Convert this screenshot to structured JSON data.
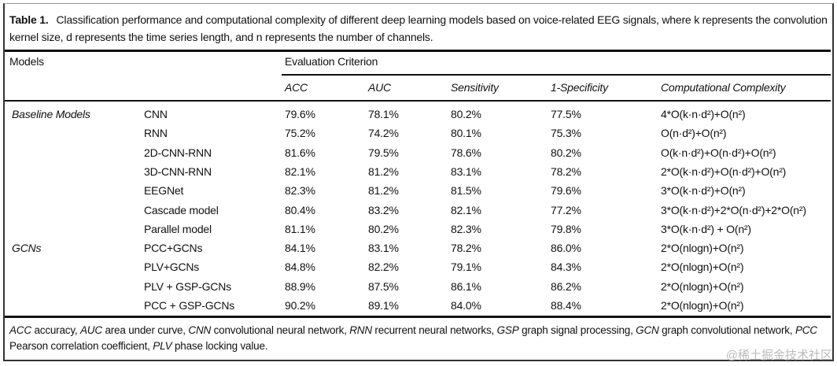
{
  "caption": {
    "label": "Table 1.",
    "text": "Classification performance and computational complexity of different deep learning models based on voice-related EEG signals, where k represents the convolution kernel size, d represents the time series length, and n represents the number of channels."
  },
  "header": {
    "models": "Models",
    "evaluation": "Evaluation Criterion",
    "columns": [
      "ACC",
      "AUC",
      "Sensitivity",
      "1-Specificity",
      "Computational Complexity"
    ]
  },
  "groups": [
    "Baseline Models",
    "GCNs"
  ],
  "rows": [
    {
      "model": "CNN",
      "acc": "79.6%",
      "auc": "78.1%",
      "sens": "80.2%",
      "spec": "77.5%",
      "cc": "4*O(k·n·d²)+O(n²)"
    },
    {
      "model": "RNN",
      "acc": "75.2%",
      "auc": "74.2%",
      "sens": "80.1%",
      "spec": "75.3%",
      "cc": "O(n·d²)+O(n²)"
    },
    {
      "model": "2D-CNN-RNN",
      "acc": "81.6%",
      "auc": "79.5%",
      "sens": "78.6%",
      "spec": "80.2%",
      "cc": "O(k·n·d²)+O(n·d²)+O(n²)"
    },
    {
      "model": "3D-CNN-RNN",
      "acc": "82.1%",
      "auc": "81.2%",
      "sens": "83.1%",
      "spec": "78.2%",
      "cc": "2*O(k·n·d²)+O(n·d²)+O(n²)"
    },
    {
      "model": "EEGNet",
      "acc": "82.3%",
      "auc": "81.2%",
      "sens": "81.5%",
      "spec": "79.6%",
      "cc": "3*O(k·n·d²)+O(n²)"
    },
    {
      "model": "Cascade model",
      "acc": "80.4%",
      "auc": "83.2%",
      "sens": "82.1%",
      "spec": "77.2%",
      "cc": "3*O(k·n·d²)+2*O(n·d²)+2*O(n²)"
    },
    {
      "model": "Parallel model",
      "acc": "81.1%",
      "auc": "80.2%",
      "sens": "82.3%",
      "spec": "79.8%",
      "cc": "3*O(k·n·d²) + O(n²)"
    },
    {
      "model": "PCC+GCNs",
      "acc": "84.1%",
      "auc": "83.1%",
      "sens": "78.2%",
      "spec": "86.0%",
      "cc": "2*O(nlogn)+O(n²)"
    },
    {
      "model": "PLV+GCNs",
      "acc": "84.8%",
      "auc": "82.2%",
      "sens": "79.1%",
      "spec": "84.3%",
      "cc": "2*O(nlogn)+O(n²)"
    },
    {
      "model": "PLV + GSP-GCNs",
      "acc": "88.9%",
      "auc": "87.5%",
      "sens": "86.1%",
      "spec": "86.2%",
      "cc": "2*O(nlogn)+O(n²)"
    },
    {
      "model": "PCC + GSP-GCNs",
      "acc": "90.2%",
      "auc": "89.1%",
      "sens": "84.0%",
      "spec": "88.4%",
      "cc": "2*O(nlogn)+O(n²)"
    }
  ],
  "footnote": [
    {
      "abbr": "ACC",
      "def": " accuracy, "
    },
    {
      "abbr": "AUC",
      "def": " area under curve, "
    },
    {
      "abbr": "CNN",
      "def": " convolutional neural network, "
    },
    {
      "abbr": "RNN",
      "def": " recurrent neural networks, "
    },
    {
      "abbr": "GSP",
      "def": " graph signal processing, "
    },
    {
      "abbr": "GCN",
      "def": " graph convolutional network, "
    },
    {
      "abbr": "PCC",
      "def": " Pearson correlation coefficient, "
    },
    {
      "abbr": "PLV",
      "def": " phase locking value."
    }
  ],
  "watermark": "@稀土掘金技术社区"
}
